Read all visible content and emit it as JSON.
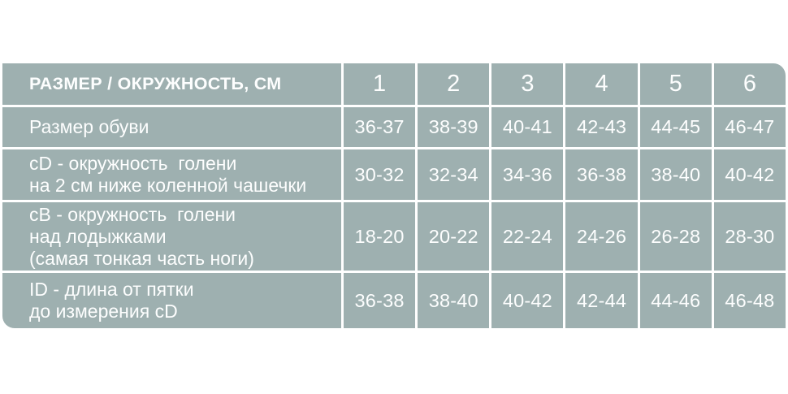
{
  "colors": {
    "cell_background": "#9EB0B0",
    "cell_text": "#FDFEFE",
    "grid_gap": "#FFFFFF",
    "page_background": "#FFFFFF"
  },
  "table": {
    "header": {
      "label": "РАЗМЕР / ОКРУЖНОСТЬ, СМ",
      "columns": [
        "1",
        "2",
        "3",
        "4",
        "5",
        "6"
      ]
    },
    "rows": [
      {
        "label_lines": [
          "Размер обуви"
        ],
        "values": [
          "36-37",
          "38-39",
          "40-41",
          "42-43",
          "44-45",
          "46-47"
        ]
      },
      {
        "label_lines": [
          "cD - окружность  голени",
          "на 2 см ниже коленной чашечки"
        ],
        "values": [
          "30-32",
          "32-34",
          "34-36",
          "36-38",
          "38-40",
          "40-42"
        ]
      },
      {
        "label_lines": [
          "cB - окружность  голени",
          "над лодыжками",
          "(самая тонкая часть ноги)"
        ],
        "values": [
          "18-20",
          "20-22",
          "22-24",
          "24-26",
          "26-28",
          "28-30"
        ]
      },
      {
        "label_lines": [
          "ID - длина от пятки",
          "до измерения cD"
        ],
        "values": [
          "36-38",
          "38-40",
          "40-42",
          "42-44",
          "44-46",
          "46-48"
        ]
      }
    ]
  },
  "chart_data": {
    "type": "table",
    "title": "РАЗМЕР / ОКРУЖНОСТЬ, СМ",
    "columns": [
      "РАЗМЕР / ОКРУЖНОСТЬ, СМ",
      "1",
      "2",
      "3",
      "4",
      "5",
      "6"
    ],
    "rows": [
      [
        "Размер обуви",
        "36-37",
        "38-39",
        "40-41",
        "42-43",
        "44-45",
        "46-47"
      ],
      [
        "cD - окружность голени на 2 см ниже коленной чашечки",
        "30-32",
        "32-34",
        "34-36",
        "36-38",
        "38-40",
        "40-42"
      ],
      [
        "cB - окружность голени над лодыжками (самая тонкая часть ноги)",
        "18-20",
        "20-22",
        "22-24",
        "24-26",
        "26-28",
        "28-30"
      ],
      [
        "ID - длина от пятки до измерения cD",
        "36-38",
        "38-40",
        "40-42",
        "42-44",
        "44-46",
        "46-48"
      ]
    ],
    "layout": {
      "grid": "white 3px gaps between teal-gray cells",
      "rounded_corners": [
        "top-right",
        "bottom-left"
      ]
    }
  }
}
